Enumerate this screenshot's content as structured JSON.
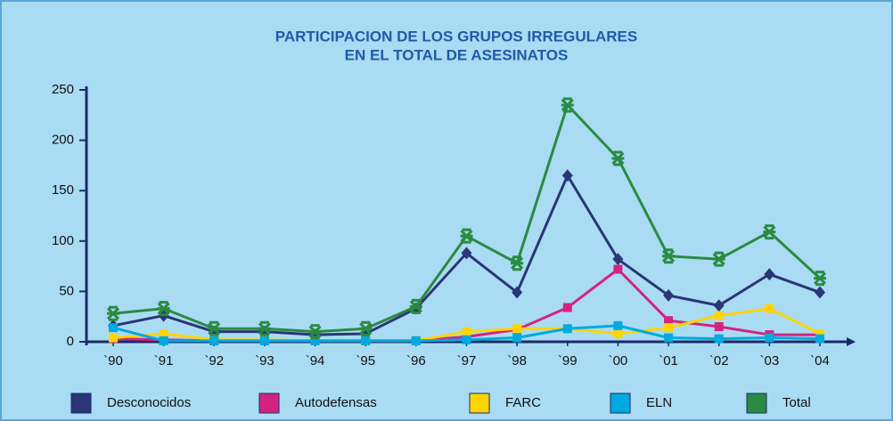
{
  "chart_data": {
    "type": "line",
    "title": [
      "PARTICIPACION DE LOS GRUPOS IRREGULARES",
      "EN EL TOTAL DE ASESINATOS"
    ],
    "categories": [
      "`90",
      "`91",
      "`92",
      "`93",
      "`94",
      "`95",
      "`96",
      "`97",
      "`98",
      "`99",
      "`00",
      "`01",
      "`02",
      "`03",
      "`04"
    ],
    "ylim": [
      0,
      250
    ],
    "yticks": [
      0,
      50,
      100,
      150,
      200,
      250
    ],
    "series": [
      {
        "name": "Desconocidos",
        "color": "#2b3578",
        "marker": "diamond",
        "values": [
          16,
          26,
          10,
          10,
          7,
          8,
          33,
          88,
          49,
          165,
          82,
          46,
          36,
          67,
          49
        ]
      },
      {
        "name": "Autodefensas",
        "color": "#d4237f",
        "marker": "square",
        "values": [
          3,
          2,
          1,
          1,
          1,
          1,
          1,
          5,
          12,
          34,
          72,
          21,
          15,
          7,
          7
        ]
      },
      {
        "name": "FARC",
        "color": "#ffd400",
        "marker": "square",
        "values": [
          4,
          8,
          2,
          2,
          1,
          1,
          1,
          10,
          13,
          13,
          8,
          14,
          26,
          33,
          8
        ]
      },
      {
        "name": "ELN",
        "color": "#00a9e0",
        "marker": "square",
        "values": [
          14,
          1,
          1,
          1,
          1,
          1,
          1,
          2,
          4,
          13,
          16,
          4,
          3,
          4,
          3
        ]
      },
      {
        "name": "Total",
        "color": "#2a8a42",
        "marker": "star",
        "values": [
          28,
          33,
          13,
          13,
          10,
          13,
          35,
          105,
          78,
          235,
          182,
          85,
          82,
          109,
          63
        ]
      }
    ]
  }
}
